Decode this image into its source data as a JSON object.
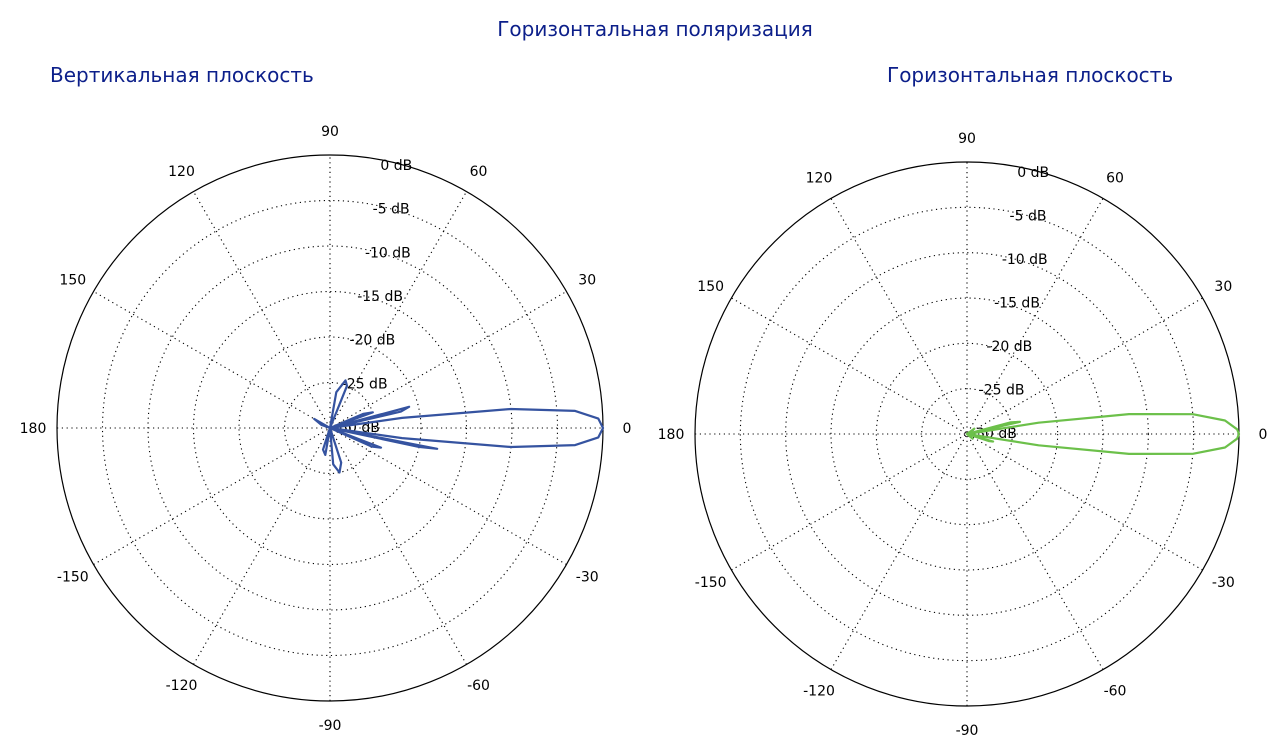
{
  "page_title": "Горизонтальная поляризация",
  "colors": {
    "heading": "#0c1f8a",
    "vertical_trace": "#3553a0",
    "horizontal_trace": "#6cc04a"
  },
  "chart_data": [
    {
      "type": "polar",
      "title": "Вертикальная плоскость",
      "radial_unit": "dB",
      "radial_range_db": [
        -30,
        0
      ],
      "radial_ticks": [
        "0 dB",
        "-5 dB",
        "-10 dB",
        "-15 dB",
        "-20 dB",
        "-25 dB",
        "-30 dB"
      ],
      "angle_ticks": [
        "0",
        "30",
        "60",
        "90",
        "120",
        "150",
        "180",
        "-150",
        "-120",
        "-90",
        "-60",
        "-30"
      ],
      "grid": true,
      "series": [
        {
          "color": "#3553a0",
          "points_deg_db": [
            [
              -10,
              -30
            ],
            [
              -8,
              -22
            ],
            [
              -6,
              -10
            ],
            [
              -4,
              -3
            ],
            [
              -2,
              -0.5
            ],
            [
              0,
              0
            ],
            [
              2,
              -0.5
            ],
            [
              4,
              -3
            ],
            [
              6,
              -10
            ],
            [
              8,
              -22
            ],
            [
              10,
              -30
            ],
            [
              -14,
              -30
            ],
            [
              -12,
              -20
            ],
            [
              -11,
              -18
            ],
            [
              -10,
              -30
            ],
            [
              11,
              -30
            ],
            [
              13,
              -22
            ],
            [
              15,
              -21
            ],
            [
              17,
              -30
            ],
            [
              17,
              -30
            ],
            [
              20,
              -25
            ],
            [
              23,
              -26
            ],
            [
              26,
              -30
            ],
            [
              -17,
              -30
            ],
            [
              -21,
              -24
            ],
            [
              -24,
              -25
            ],
            [
              -28,
              -30
            ],
            [
              55,
              -30
            ],
            [
              68,
              -25
            ],
            [
              72,
              -24.5
            ],
            [
              80,
              -26
            ],
            [
              90,
              -30
            ],
            [
              -60,
              -30
            ],
            [
              -72,
              -26
            ],
            [
              -78,
              -25
            ],
            [
              -85,
              -26
            ],
            [
              -95,
              -30
            ],
            [
              -95,
              -30
            ],
            [
              -100,
              -27
            ],
            [
              -108,
              -27.5
            ],
            [
              -120,
              -30
            ],
            [
              140,
              -30
            ],
            [
              150,
              -28
            ],
            [
              160,
              -29
            ],
            [
              175,
              -30
            ]
          ]
        }
      ]
    },
    {
      "type": "polar",
      "title": "Горизонтальная плоскость",
      "radial_unit": "dB",
      "radial_range_db": [
        -30,
        0
      ],
      "radial_ticks": [
        "0 dB",
        "-5 dB",
        "-10 dB",
        "-15 dB",
        "-20 dB",
        "-25 dB",
        "-30 dB"
      ],
      "angle_ticks": [
        "0",
        "30",
        "60",
        "90",
        "120",
        "150",
        "180",
        "-150",
        "-120",
        "-90",
        "-60",
        "-30"
      ],
      "grid": true,
      "series": [
        {
          "color": "#6cc04a",
          "points_deg_db": [
            [
              -12,
              -30
            ],
            [
              -9,
              -22
            ],
            [
              -7,
              -12
            ],
            [
              -5,
              -5
            ],
            [
              -3,
              -1.5
            ],
            [
              -1,
              -0.2
            ],
            [
              0,
              0
            ],
            [
              1,
              -0.2
            ],
            [
              3,
              -1.5
            ],
            [
              5,
              -5
            ],
            [
              7,
              -12
            ],
            [
              9,
              -22
            ],
            [
              12,
              -30
            ],
            [
              10,
              -30
            ],
            [
              13,
              -24
            ],
            [
              15,
              -25
            ],
            [
              18,
              -30
            ],
            [
              -14,
              -30
            ],
            [
              -16,
              -27
            ],
            [
              -18,
              -27.5
            ],
            [
              -22,
              -30
            ],
            [
              30,
              -30
            ],
            [
              36,
              -29
            ],
            [
              42,
              -30
            ],
            [
              -35,
              -30
            ],
            [
              -40,
              -29.2
            ],
            [
              -46,
              -30
            ]
          ]
        }
      ]
    }
  ]
}
